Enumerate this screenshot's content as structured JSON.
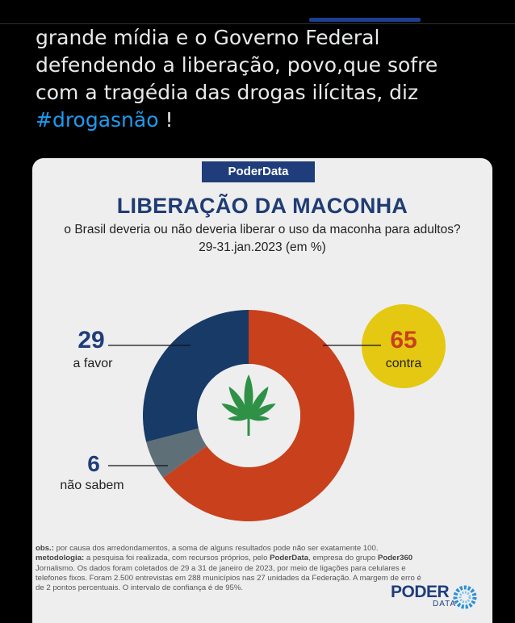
{
  "tweet": {
    "line1": "grande mídia e o Governo Federal",
    "line2": "defendendo a liberação, povo,que sofre",
    "line3": "com a tragédia das drogas ilícitas, diz",
    "hashtag": "#drogasnão",
    "suffix": " !"
  },
  "infographic": {
    "brand": "PoderData",
    "title": "LIBERAÇÃO DA MACONHA",
    "question": "o Brasil deveria ou não deveria liberar o uso da maconha para adultos?",
    "date": "29-31.jan.2023 (em %)",
    "obs_label": "obs.:",
    "obs_text": " por causa dos arredondamentos, a soma de alguns resultados pode não ser exatamente 100.",
    "method_label": "metodologia:",
    "method_text_1": " a pesquisa foi realizada, com recursos próprios, pelo ",
    "method_org1": "PoderData",
    "method_text_2": ", empresa do grupo ",
    "method_org2": "Poder360",
    "method_text_3": " Jornalismo. Os dados foram coletados de 29 a 31 de janeiro de 2023, por meio de ligações para celulares e telefones fixos. Foram 2.500 entrevistas em 288 municípios nas 27 unidades da Federação. A margem de erro é de 2 pontos percentuais. O intervalo de confiança é de 95%.",
    "logo_word": "PODER",
    "logo_sub": "DATA",
    "leaf_icon": "cannabis-leaf-icon"
  },
  "chart_data": {
    "type": "pie",
    "donut": true,
    "title": "LIBERAÇÃO DA MACONHA",
    "subtitle": "o Brasil deveria ou não deveria liberar o uso da maconha para adultos?",
    "categories": [
      "contra",
      "não sabem",
      "a favor"
    ],
    "values": [
      65,
      6,
      29
    ],
    "colors": [
      "#c8401c",
      "#5f6f78",
      "#173a67"
    ],
    "labels": [
      {
        "value": "65",
        "text": "contra",
        "value_color": "#c8401c",
        "circle_color": "#e4c811"
      },
      {
        "value": "6",
        "text": "não sabem",
        "value_color": "#1e3d7a"
      },
      {
        "value": "29",
        "text": "a favor",
        "value_color": "#1e3d7a"
      }
    ]
  }
}
